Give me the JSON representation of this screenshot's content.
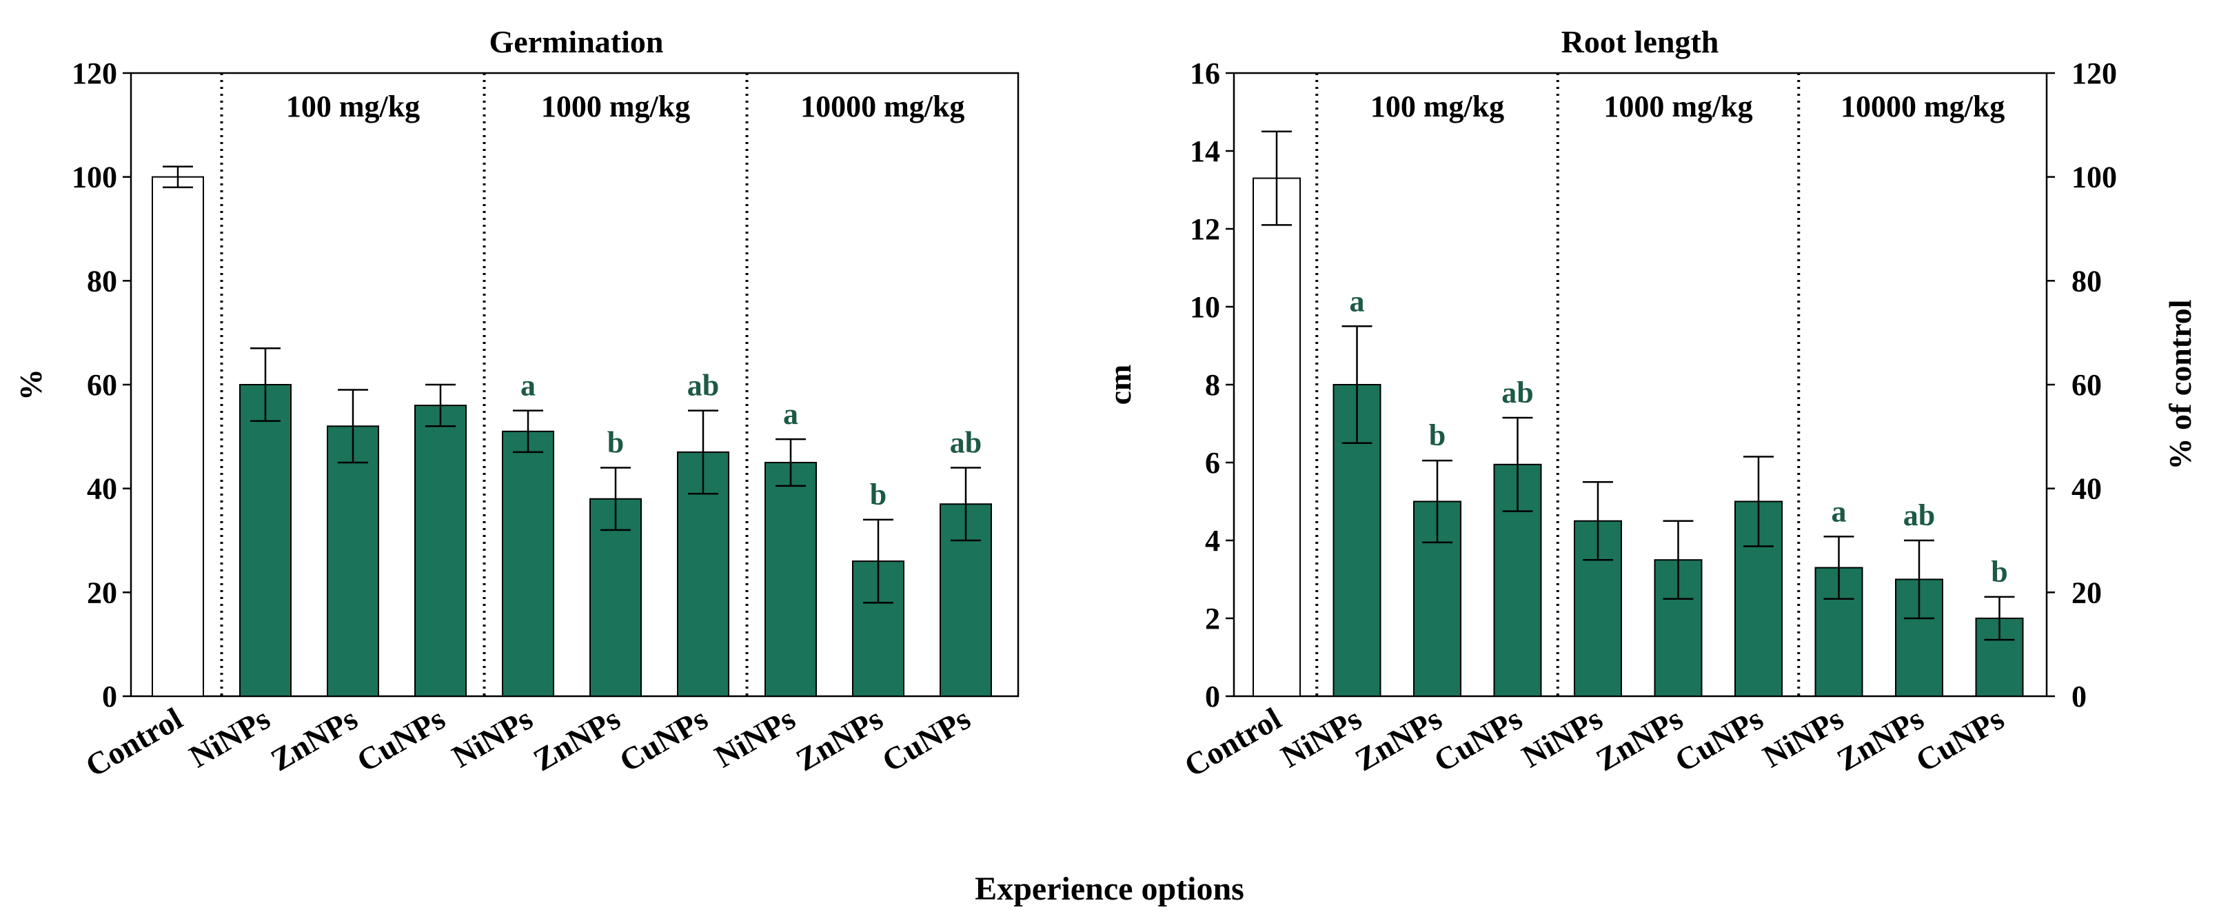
{
  "colors": {
    "treatment_fill": "#1b7359",
    "control_fill": "#ffffff",
    "significance_text": "#1c5a44"
  },
  "x_axis_title": "Experience options",
  "chart_data": [
    {
      "id": "germination",
      "type": "bar",
      "title": "Germination",
      "ylabel": "%",
      "ylim": [
        0,
        120
      ],
      "yticks": [
        0,
        20,
        40,
        60,
        80,
        100,
        120
      ],
      "categories": [
        "Control",
        "NiNPs",
        "ZnNPs",
        "CuNPs",
        "NiNPs",
        "ZnNPs",
        "CuNPs",
        "NiNPs",
        "ZnNPs",
        "CuNPs"
      ],
      "values": [
        100,
        60,
        52,
        56,
        51,
        38,
        47,
        45,
        26,
        37
      ],
      "errors": [
        2,
        7,
        7,
        4,
        4,
        6,
        8,
        4.5,
        8,
        7
      ],
      "significance": [
        "",
        "",
        "",
        "",
        "a",
        "b",
        "ab",
        "a",
        "b",
        "ab"
      ],
      "groups": [
        {
          "label": "100 mg/kg",
          "start": 1,
          "end": 3
        },
        {
          "label": "1000 mg/kg",
          "start": 4,
          "end": 6
        },
        {
          "label": "10000 mg/kg",
          "start": 7,
          "end": 9
        }
      ],
      "legend": "none"
    },
    {
      "id": "root_length",
      "type": "bar",
      "title": "Root length",
      "ylabel": "cm",
      "ylim": [
        0,
        16
      ],
      "yticks": [
        0,
        2,
        4,
        6,
        8,
        10,
        12,
        14,
        16
      ],
      "y2label": "% of control",
      "y2lim": [
        0,
        120
      ],
      "y2ticks": [
        0,
        20,
        40,
        60,
        80,
        100,
        120
      ],
      "categories": [
        "Control",
        "NiNPs",
        "ZnNPs",
        "CuNPs",
        "NiNPs",
        "ZnNPs",
        "CuNPs",
        "NiNPs",
        "ZnNPs",
        "CuNPs"
      ],
      "values": [
        13.3,
        8.0,
        5.0,
        5.95,
        4.5,
        3.5,
        5.0,
        3.3,
        3.0,
        2.0
      ],
      "errors": [
        1.2,
        1.5,
        1.05,
        1.2,
        1.0,
        1.0,
        1.15,
        0.8,
        1.0,
        0.55
      ],
      "significance": [
        "",
        "a",
        "b",
        "ab",
        "",
        "",
        "",
        "a",
        "ab",
        "b"
      ],
      "groups": [
        {
          "label": "100 mg/kg",
          "start": 1,
          "end": 3
        },
        {
          "label": "1000 mg/kg",
          "start": 4,
          "end": 6
        },
        {
          "label": "10000 mg/kg",
          "start": 7,
          "end": 9
        }
      ],
      "legend": "none"
    }
  ]
}
